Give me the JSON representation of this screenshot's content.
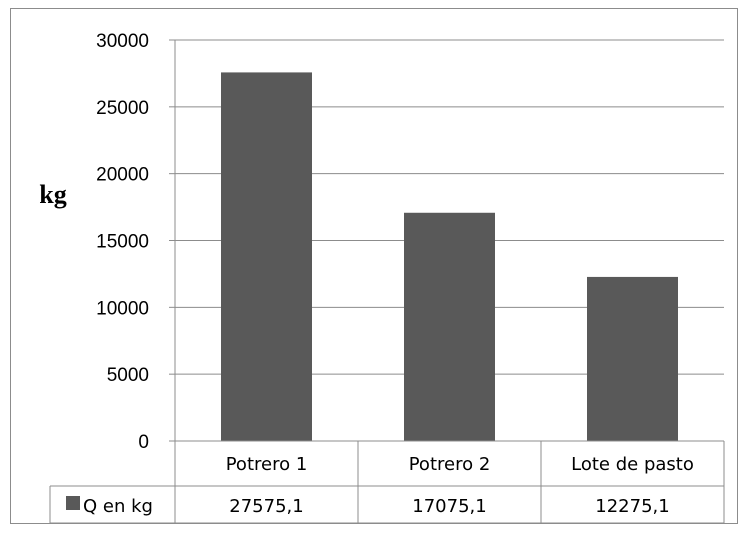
{
  "chart_data": {
    "type": "bar",
    "categories": [
      "Potrero 1",
      "Potrero 2",
      "Lote de pasto"
    ],
    "series": [
      {
        "name": "Q en kg",
        "values": [
          27575.1,
          17075.1,
          12275.1
        ],
        "value_labels": [
          "27575,1",
          "17075,1",
          "12275,1"
        ]
      }
    ],
    "ylabel": "kg",
    "ylim": [
      0,
      30000
    ],
    "yticks": [
      0,
      5000,
      10000,
      15000,
      20000,
      25000,
      30000
    ],
    "ytick_labels": [
      "0",
      "5000",
      "10000",
      "15000",
      "20000",
      "25000",
      "30000"
    ],
    "grid": true,
    "data_table": true,
    "colors": {
      "bar": "#595959",
      "grid": "#8c8c8c",
      "frame": "#8c8c8c"
    }
  }
}
